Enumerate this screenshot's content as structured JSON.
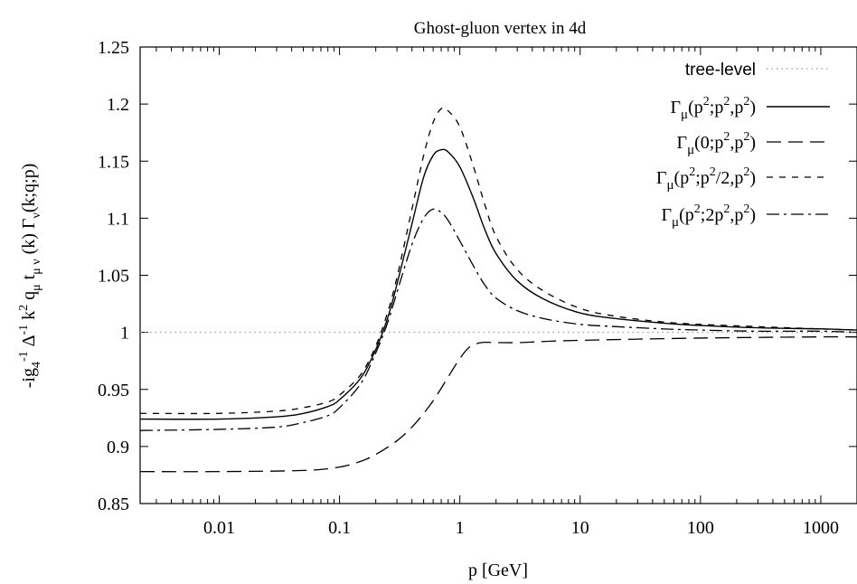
{
  "chart_data": {
    "type": "line",
    "title": "Ghost-gluon vertex in 4d",
    "xlabel": "p [GeV]",
    "ylabel": "-ig₄⁻¹ Δ⁻¹ k² qμ tμν(k) Γν(k;q;p)",
    "xscale": "log",
    "xlim": [
      0.0022,
      2000
    ],
    "ylim": [
      0.85,
      1.25
    ],
    "x_ticks": [
      0.01,
      0.1,
      1,
      10,
      100,
      1000
    ],
    "x_tick_labels": [
      "0.01",
      "0.1",
      "1",
      "10",
      "100",
      "1000"
    ],
    "y_ticks": [
      0.85,
      0.9,
      0.95,
      1,
      1.05,
      1.1,
      1.15,
      1.2,
      1.25
    ],
    "y_tick_labels": [
      "0.85",
      "0.9",
      "0.95",
      "1",
      "1.05",
      "1.1",
      "1.15",
      "1.2",
      "1.25"
    ],
    "grid": false,
    "legend_position": "top-right",
    "series": [
      {
        "name": "tree-level",
        "style": "dotted",
        "color": "#999999",
        "x": [
          0.0022,
          2000
        ],
        "y": [
          1.0,
          1.0
        ]
      },
      {
        "name": "Γμ(p²;p²,p²)",
        "style": "solid",
        "color": "#000000",
        "x": [
          0.0022,
          0.01,
          0.03,
          0.05,
          0.08,
          0.1,
          0.15,
          0.2,
          0.25,
          0.3,
          0.4,
          0.5,
          0.6,
          0.7,
          0.8,
          1.0,
          1.3,
          1.6,
          2,
          3,
          5,
          10,
          20,
          50,
          100,
          300,
          1000,
          2000
        ],
        "y": [
          0.924,
          0.924,
          0.926,
          0.929,
          0.935,
          0.941,
          0.96,
          0.985,
          1.012,
          1.042,
          1.095,
          1.136,
          1.155,
          1.16,
          1.158,
          1.145,
          1.117,
          1.091,
          1.069,
          1.045,
          1.029,
          1.017,
          1.012,
          1.008,
          1.006,
          1.004,
          1.003,
          1.002
        ]
      },
      {
        "name": "Γμ(0;p²,p²)",
        "style": "long-dash",
        "color": "#000000",
        "x": [
          0.0022,
          0.01,
          0.05,
          0.1,
          0.15,
          0.2,
          0.3,
          0.4,
          0.5,
          0.6,
          0.7,
          0.8,
          1.0,
          1.2,
          1.5,
          2,
          3,
          5,
          10,
          100,
          1000,
          2000
        ],
        "y": [
          0.878,
          0.878,
          0.879,
          0.882,
          0.887,
          0.893,
          0.905,
          0.917,
          0.929,
          0.94,
          0.951,
          0.961,
          0.977,
          0.987,
          0.991,
          0.991,
          0.991,
          0.992,
          0.993,
          0.995,
          0.996,
          0.996
        ]
      },
      {
        "name": "Γμ(p²;p²/2,p²)",
        "style": "short-dash",
        "color": "#000000",
        "x": [
          0.0022,
          0.01,
          0.03,
          0.05,
          0.08,
          0.1,
          0.15,
          0.2,
          0.25,
          0.3,
          0.4,
          0.5,
          0.6,
          0.7,
          0.8,
          1.0,
          1.3,
          1.6,
          2,
          3,
          5,
          10,
          20,
          50,
          100,
          300,
          1000,
          2000
        ],
        "y": [
          0.929,
          0.929,
          0.931,
          0.934,
          0.939,
          0.945,
          0.963,
          0.988,
          1.017,
          1.048,
          1.108,
          1.155,
          1.184,
          1.196,
          1.194,
          1.18,
          1.145,
          1.113,
          1.084,
          1.055,
          1.036,
          1.021,
          1.014,
          1.009,
          1.007,
          1.005,
          1.003,
          1.002
        ]
      },
      {
        "name": "Γμ(p²;2p²,p²)",
        "style": "dash-dot",
        "color": "#000000",
        "x": [
          0.0022,
          0.01,
          0.03,
          0.05,
          0.08,
          0.1,
          0.15,
          0.2,
          0.25,
          0.3,
          0.4,
          0.5,
          0.6,
          0.7,
          0.8,
          1.0,
          1.3,
          1.6,
          2,
          3,
          5,
          10,
          20,
          50,
          100,
          300,
          1000,
          2000
        ],
        "y": [
          0.914,
          0.915,
          0.917,
          0.921,
          0.927,
          0.934,
          0.955,
          0.982,
          1.008,
          1.035,
          1.077,
          1.1,
          1.108,
          1.105,
          1.098,
          1.08,
          1.058,
          1.042,
          1.03,
          1.019,
          1.012,
          1.007,
          1.005,
          1.003,
          1.002,
          1.001,
          1.001,
          1.0
        ]
      }
    ]
  }
}
